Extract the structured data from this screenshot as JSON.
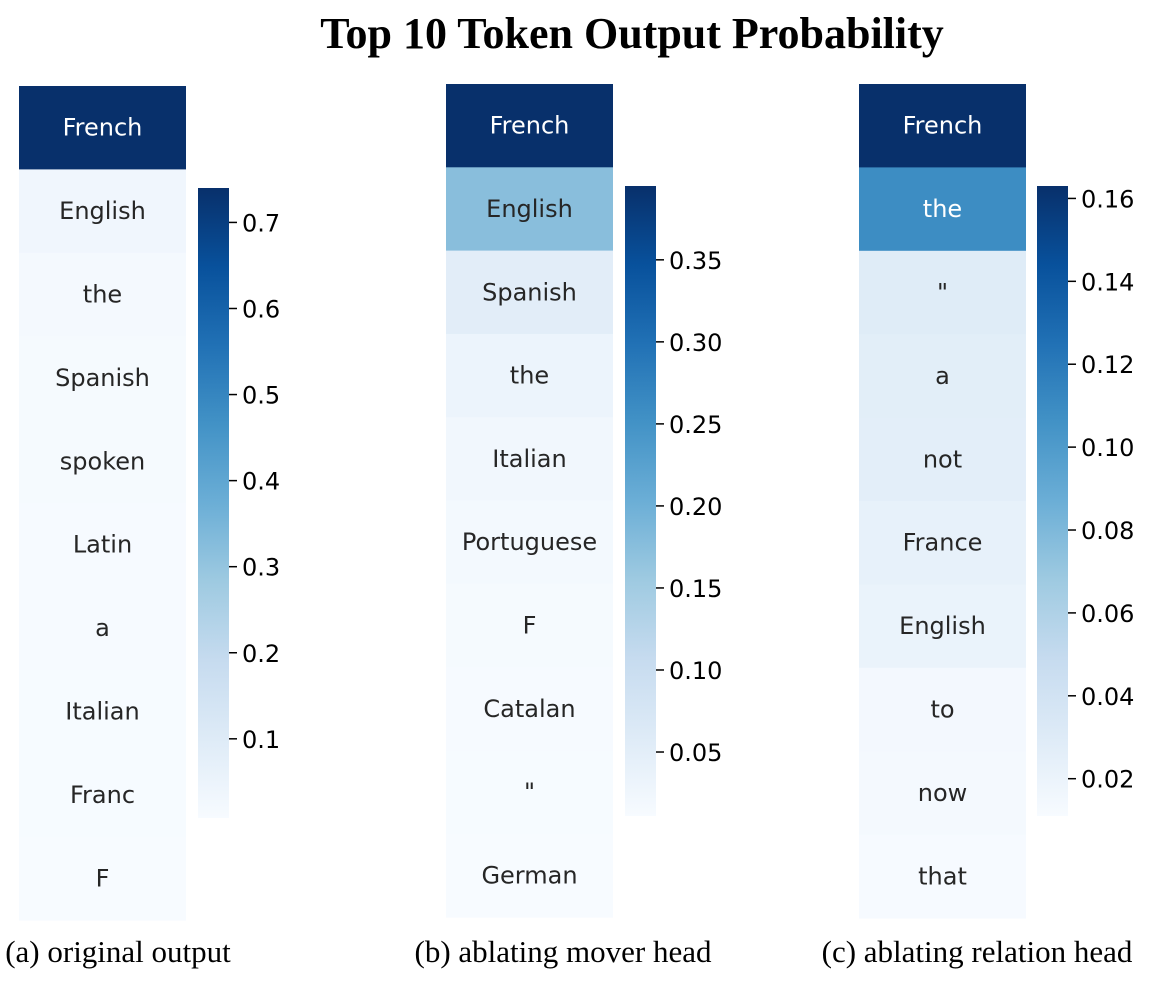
{
  "title": "Top 10 Token Output Probability",
  "colors": {
    "blues": [
      "#f7fbff",
      "#deebf7",
      "#c6dbef",
      "#9ecae1",
      "#6baed6",
      "#4292c6",
      "#2171b5",
      "#08519c",
      "#08306b"
    ],
    "dark_text": "#262626",
    "light_text": "#ffffff"
  },
  "chart_data": [
    {
      "type": "heatmap",
      "caption": "(a) original output",
      "tokens": [
        "French",
        "English",
        "the",
        "Spanish",
        "spoken",
        "Latin",
        "a",
        "Italian",
        "Franc",
        "F"
      ],
      "values": [
        0.74,
        0.035,
        0.018,
        0.016,
        0.014,
        0.012,
        0.011,
        0.01,
        0.01,
        0.008
      ],
      "colorbar": {
        "vmin": 0.008,
        "vmax": 0.74,
        "ticks": [
          0.1,
          0.2,
          0.3,
          0.4,
          0.5,
          0.6,
          0.7
        ],
        "tick_labels": [
          "0.1",
          "0.2",
          "0.3",
          "0.4",
          "0.5",
          "0.6",
          "0.7"
        ]
      }
    },
    {
      "type": "heatmap",
      "caption": "(b) ablating mover head",
      "tokens": [
        "French",
        "English",
        "Spanish",
        "the",
        "Italian",
        "Portuguese",
        "F",
        "Catalan",
        "\"",
        "German"
      ],
      "values": [
        0.395,
        0.175,
        0.052,
        0.032,
        0.022,
        0.018,
        0.015,
        0.013,
        0.012,
        0.011
      ],
      "colorbar": {
        "vmin": 0.011,
        "vmax": 0.395,
        "ticks": [
          0.05,
          0.1,
          0.15,
          0.2,
          0.25,
          0.3,
          0.35
        ],
        "tick_labels": [
          "0.05",
          "0.10",
          "0.15",
          "0.20",
          "0.25",
          "0.30",
          "0.35"
        ]
      }
    },
    {
      "type": "heatmap",
      "caption": "(c) ablating relation head",
      "tokens": [
        "French",
        "the",
        "\"",
        "a",
        "not",
        "France",
        "English",
        "to",
        "now",
        "that"
      ],
      "values": [
        0.163,
        0.109,
        0.029,
        0.027,
        0.026,
        0.023,
        0.021,
        0.014,
        0.013,
        0.012
      ],
      "colorbar": {
        "vmin": 0.011,
        "vmax": 0.163,
        "ticks": [
          0.02,
          0.04,
          0.06,
          0.08,
          0.1,
          0.12,
          0.14,
          0.16
        ],
        "tick_labels": [
          "0.02",
          "0.04",
          "0.06",
          "0.08",
          "0.10",
          "0.12",
          "0.14",
          "0.16"
        ]
      }
    }
  ]
}
